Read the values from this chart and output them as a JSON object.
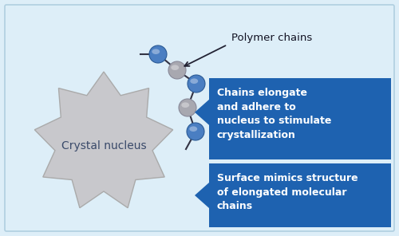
{
  "bg_light": "#ddeef8",
  "nucleus_color": "#c8c8cc",
  "nucleus_edge_color": "#aaaaaa",
  "blue_ball_color": "#4a7ec2",
  "blue_ball_edge": "#2a5a95",
  "gray_ball_color": "#a8a8b0",
  "gray_ball_edge": "#888898",
  "box_color": "#1e62b0",
  "box_text_color": "#ffffff",
  "polymer_label": "Polymer chains",
  "nucleus_label": "Crystal nucleus",
  "box1_text": "Chains elongate\nand adhere to\nnucleus to stimulate\ncrystallization",
  "box2_text": "Surface mimics structure\nof elongated molecular\nchains",
  "figsize": [
    5.0,
    2.96
  ],
  "dpi": 100
}
